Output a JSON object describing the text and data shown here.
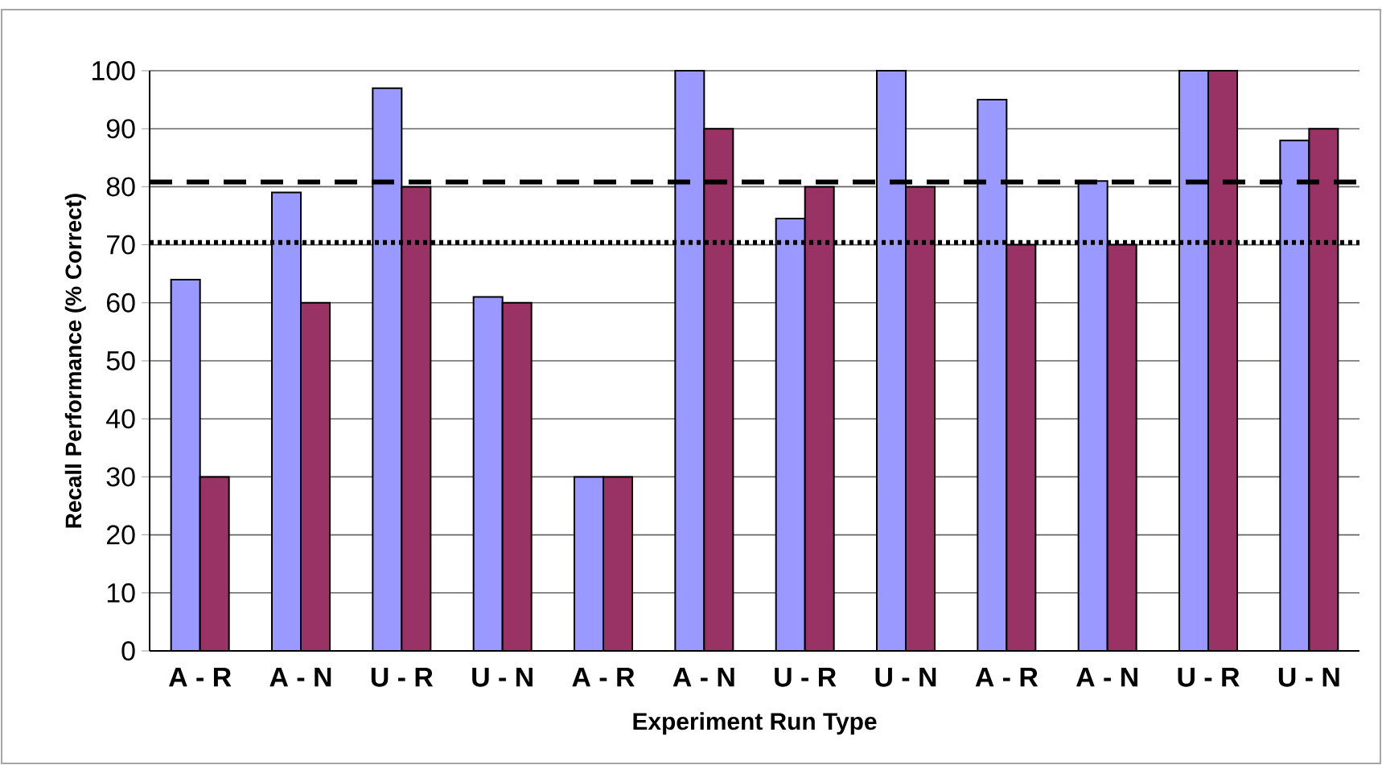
{
  "chart_data": {
    "type": "bar",
    "xlabel": "Experiment Run Type",
    "ylabel": "Recall Performance (% Correct)",
    "categories": [
      "A - R",
      "A - N",
      "U - R",
      "U - N",
      "A - R",
      "A - N",
      "U - R",
      "U - N",
      "A - R",
      "A - N",
      "U - R",
      "U - N"
    ],
    "series": [
      {
        "color": "#9999ff",
        "values": [
          64,
          79,
          97,
          61,
          30,
          100,
          74.5,
          100,
          95,
          81,
          100,
          88
        ]
      },
      {
        "color": "#993366",
        "values": [
          30,
          60,
          80,
          60,
          30,
          90,
          80,
          80,
          70,
          70,
          100,
          90
        ]
      }
    ],
    "ylim": [
      0,
      100
    ],
    "yticks": [
      0,
      10,
      20,
      30,
      40,
      50,
      60,
      70,
      80,
      90,
      100
    ],
    "grid": "y",
    "ref_lines": [
      {
        "axis": "y",
        "value": 80.8,
        "line_style": "dashed",
        "color": "#000000"
      },
      {
        "axis": "y",
        "value": 70.4,
        "line_style": "dotted",
        "color": "#000000"
      }
    ]
  }
}
